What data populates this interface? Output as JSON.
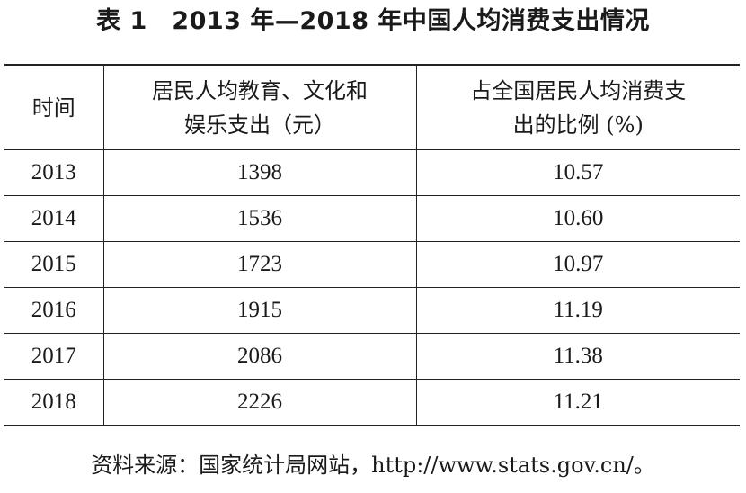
{
  "title": "表 1　2013 年—2018 年中国人均消费支出情况",
  "table": {
    "headers": [
      [
        "时间"
      ],
      [
        "居民人均教育、文化和",
        "娱乐支出（元）"
      ],
      [
        "占全国居民人均消费支",
        "出的比例 (%)"
      ]
    ],
    "rows": [
      [
        "2013",
        "1398",
        "10.57"
      ],
      [
        "2014",
        "1536",
        "10.60"
      ],
      [
        "2015",
        "1723",
        "10.97"
      ],
      [
        "2016",
        "1915",
        "11.19"
      ],
      [
        "2017",
        "2086",
        "11.38"
      ],
      [
        "2018",
        "2226",
        "11.21"
      ]
    ]
  },
  "source": "资料来源：国家统计局网站，http://www.stats.gov.cn/。"
}
